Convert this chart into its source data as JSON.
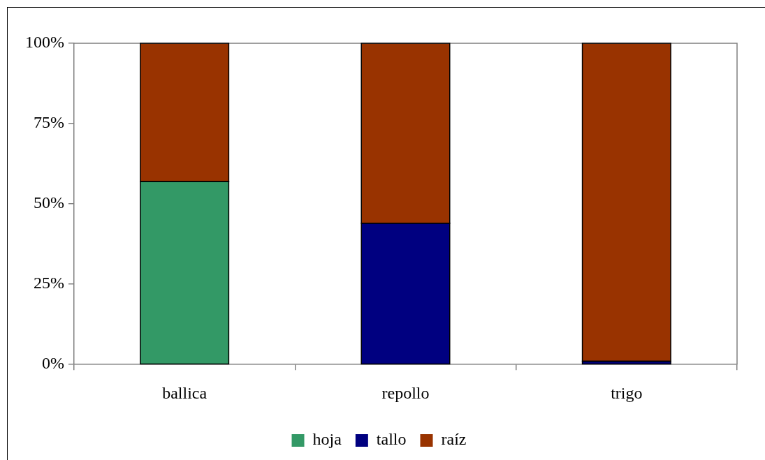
{
  "chart_data": {
    "type": "bar",
    "stacked": true,
    "categories": [
      "ballica",
      "repollo",
      "trigo"
    ],
    "series": [
      {
        "name": "hoja",
        "color": "#339966",
        "values": [
          57,
          null,
          null
        ]
      },
      {
        "name": "tallo",
        "color": "#000080",
        "values": [
          null,
          44,
          1
        ]
      },
      {
        "name": "raíz",
        "color": "#993300",
        "values": [
          43,
          56,
          99
        ]
      }
    ],
    "ylim": [
      0,
      100
    ],
    "yticks": [
      {
        "value": 0,
        "label": "0%"
      },
      {
        "value": 25,
        "label": "25%"
      },
      {
        "value": 50,
        "label": "50%"
      },
      {
        "value": 75,
        "label": "75%"
      },
      {
        "value": 100,
        "label": "100%"
      }
    ],
    "grid": false,
    "legend": "bottom"
  }
}
